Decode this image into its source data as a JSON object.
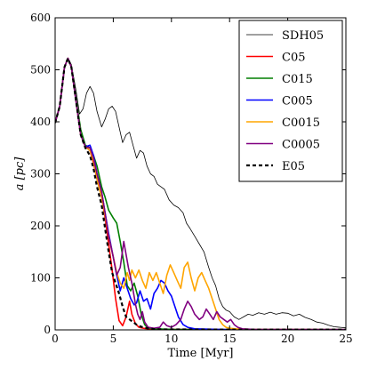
{
  "chart_data": {
    "type": "line",
    "title": "",
    "xlabel": "Time [Myr]",
    "ylabel": "a [pc]",
    "ylabel_parts": {
      "main": "a",
      "unit": "[pc]"
    },
    "xlim": [
      0,
      25
    ],
    "ylim": [
      0,
      600
    ],
    "xticks": [
      0,
      5,
      10,
      15,
      20,
      25
    ],
    "yticks": [
      0,
      100,
      200,
      300,
      400,
      500,
      600
    ],
    "grid": false,
    "legend_position": "top-right",
    "series": [
      {
        "name": "SDH05",
        "color": "#000000",
        "width": 0.8,
        "dash": "",
        "points": [
          [
            0,
            398
          ],
          [
            0.4,
            430
          ],
          [
            0.8,
            505
          ],
          [
            1.1,
            522
          ],
          [
            1.4,
            510
          ],
          [
            1.8,
            460
          ],
          [
            2.1,
            415
          ],
          [
            2.4,
            425
          ],
          [
            2.7,
            455
          ],
          [
            3.0,
            468
          ],
          [
            3.3,
            455
          ],
          [
            3.6,
            420
          ],
          [
            4.0,
            390
          ],
          [
            4.3,
            405
          ],
          [
            4.6,
            425
          ],
          [
            4.9,
            430
          ],
          [
            5.2,
            420
          ],
          [
            5.5,
            390
          ],
          [
            5.8,
            360
          ],
          [
            6.1,
            375
          ],
          [
            6.4,
            380
          ],
          [
            6.7,
            355
          ],
          [
            7.0,
            330
          ],
          [
            7.3,
            345
          ],
          [
            7.6,
            340
          ],
          [
            7.9,
            315
          ],
          [
            8.2,
            300
          ],
          [
            8.5,
            295
          ],
          [
            8.8,
            280
          ],
          [
            9.1,
            275
          ],
          [
            9.4,
            270
          ],
          [
            9.8,
            250
          ],
          [
            10.2,
            240
          ],
          [
            10.6,
            235
          ],
          [
            11.0,
            225
          ],
          [
            11.3,
            205
          ],
          [
            11.6,
            195
          ],
          [
            12.0,
            180
          ],
          [
            12.4,
            165
          ],
          [
            12.8,
            150
          ],
          [
            13.2,
            120
          ],
          [
            13.5,
            100
          ],
          [
            13.8,
            85
          ],
          [
            14.1,
            60
          ],
          [
            14.4,
            45
          ],
          [
            14.7,
            38
          ],
          [
            15.0,
            35
          ],
          [
            15.4,
            25
          ],
          [
            15.8,
            20
          ],
          [
            16.2,
            25
          ],
          [
            16.6,
            30
          ],
          [
            17.0,
            28
          ],
          [
            17.5,
            33
          ],
          [
            18.0,
            30
          ],
          [
            18.5,
            34
          ],
          [
            19.0,
            30
          ],
          [
            19.5,
            33
          ],
          [
            20.0,
            32
          ],
          [
            20.5,
            27
          ],
          [
            21.0,
            30
          ],
          [
            21.5,
            24
          ],
          [
            22.0,
            20
          ],
          [
            22.5,
            15
          ],
          [
            23.0,
            13
          ],
          [
            23.5,
            9
          ],
          [
            24.0,
            6
          ],
          [
            24.5,
            5
          ],
          [
            25.0,
            4
          ]
        ]
      },
      {
        "name": "C05",
        "color": "#ff0000",
        "width": 1.6,
        "dash": "",
        "points": [
          [
            0,
            398
          ],
          [
            0.4,
            430
          ],
          [
            0.8,
            505
          ],
          [
            1.1,
            522
          ],
          [
            1.4,
            505
          ],
          [
            1.8,
            440
          ],
          [
            2.2,
            375
          ],
          [
            2.6,
            352
          ],
          [
            3.0,
            345
          ],
          [
            3.3,
            320
          ],
          [
            3.6,
            290
          ],
          [
            4.0,
            255
          ],
          [
            4.3,
            215
          ],
          [
            4.6,
            165
          ],
          [
            4.9,
            115
          ],
          [
            5.2,
            60
          ],
          [
            5.5,
            18
          ],
          [
            5.8,
            8
          ],
          [
            6.1,
            25
          ],
          [
            6.4,
            55
          ],
          [
            6.6,
            30
          ],
          [
            6.9,
            12
          ],
          [
            7.2,
            5
          ],
          [
            7.6,
            3
          ],
          [
            8.0,
            2
          ],
          [
            9.0,
            1
          ],
          [
            10,
            1
          ],
          [
            15,
            0.5
          ],
          [
            25,
            0.5
          ]
        ]
      },
      {
        "name": "C015",
        "color": "#007f00",
        "width": 1.6,
        "dash": "",
        "points": [
          [
            0,
            398
          ],
          [
            0.4,
            430
          ],
          [
            0.8,
            505
          ],
          [
            1.1,
            522
          ],
          [
            1.4,
            505
          ],
          [
            1.8,
            445
          ],
          [
            2.2,
            385
          ],
          [
            2.6,
            355
          ],
          [
            3.0,
            350
          ],
          [
            3.3,
            335
          ],
          [
            3.6,
            315
          ],
          [
            4.0,
            275
          ],
          [
            4.3,
            255
          ],
          [
            4.6,
            230
          ],
          [
            5.0,
            215
          ],
          [
            5.3,
            205
          ],
          [
            5.6,
            170
          ],
          [
            5.9,
            130
          ],
          [
            6.2,
            85
          ],
          [
            6.5,
            75
          ],
          [
            6.8,
            90
          ],
          [
            7.1,
            65
          ],
          [
            7.4,
            30
          ],
          [
            7.7,
            10
          ],
          [
            8.0,
            4
          ],
          [
            8.5,
            2
          ],
          [
            10,
            1
          ],
          [
            15,
            0.5
          ],
          [
            25,
            0.5
          ]
        ]
      },
      {
        "name": "C005",
        "color": "#0000ff",
        "width": 1.6,
        "dash": "",
        "points": [
          [
            0,
            398
          ],
          [
            0.4,
            430
          ],
          [
            0.8,
            505
          ],
          [
            1.1,
            522
          ],
          [
            1.4,
            505
          ],
          [
            1.8,
            440
          ],
          [
            2.2,
            375
          ],
          [
            2.6,
            352
          ],
          [
            3.0,
            355
          ],
          [
            3.3,
            335
          ],
          [
            3.6,
            300
          ],
          [
            4.0,
            265
          ],
          [
            4.3,
            225
          ],
          [
            4.6,
            185
          ],
          [
            5.0,
            140
          ],
          [
            5.3,
            105
          ],
          [
            5.6,
            75
          ],
          [
            5.9,
            100
          ],
          [
            6.2,
            80
          ],
          [
            6.5,
            60
          ],
          [
            6.8,
            48
          ],
          [
            7.0,
            52
          ],
          [
            7.3,
            75
          ],
          [
            7.6,
            55
          ],
          [
            7.9,
            60
          ],
          [
            8.2,
            40
          ],
          [
            8.5,
            70
          ],
          [
            8.8,
            80
          ],
          [
            9.1,
            95
          ],
          [
            9.4,
            90
          ],
          [
            9.7,
            75
          ],
          [
            10.0,
            65
          ],
          [
            10.3,
            45
          ],
          [
            10.6,
            25
          ],
          [
            11.0,
            10
          ],
          [
            11.4,
            5
          ],
          [
            12,
            2
          ],
          [
            15,
            0.5
          ],
          [
            25,
            0.5
          ]
        ]
      },
      {
        "name": "C0015",
        "color": "#ffa500",
        "width": 1.6,
        "dash": "",
        "points": [
          [
            0,
            398
          ],
          [
            0.4,
            430
          ],
          [
            0.8,
            505
          ],
          [
            1.1,
            522
          ],
          [
            1.4,
            505
          ],
          [
            1.8,
            440
          ],
          [
            2.2,
            375
          ],
          [
            2.6,
            352
          ],
          [
            3.0,
            345
          ],
          [
            3.3,
            325
          ],
          [
            3.6,
            290
          ],
          [
            4.0,
            255
          ],
          [
            4.3,
            220
          ],
          [
            4.6,
            180
          ],
          [
            5.0,
            140
          ],
          [
            5.3,
            110
          ],
          [
            5.6,
            90
          ],
          [
            5.9,
            80
          ],
          [
            6.2,
            110
          ],
          [
            6.4,
            95
          ],
          [
            6.6,
            115
          ],
          [
            6.9,
            100
          ],
          [
            7.2,
            115
          ],
          [
            7.5,
            95
          ],
          [
            7.8,
            80
          ],
          [
            8.1,
            110
          ],
          [
            8.4,
            95
          ],
          [
            8.7,
            110
          ],
          [
            9.0,
            90
          ],
          [
            9.3,
            70
          ],
          [
            9.6,
            105
          ],
          [
            9.9,
            125
          ],
          [
            10.2,
            110
          ],
          [
            10.5,
            95
          ],
          [
            10.8,
            80
          ],
          [
            11.1,
            120
          ],
          [
            11.4,
            130
          ],
          [
            11.7,
            100
          ],
          [
            12.0,
            75
          ],
          [
            12.3,
            100
          ],
          [
            12.6,
            110
          ],
          [
            12.9,
            95
          ],
          [
            13.2,
            80
          ],
          [
            13.5,
            60
          ],
          [
            13.8,
            40
          ],
          [
            14.1,
            20
          ],
          [
            14.4,
            10
          ],
          [
            14.7,
            5
          ],
          [
            15.0,
            3
          ],
          [
            15.5,
            2
          ],
          [
            17,
            1
          ],
          [
            25,
            0.5
          ]
        ]
      },
      {
        "name": "C0005",
        "color": "#800080",
        "width": 1.6,
        "dash": "",
        "points": [
          [
            0,
            398
          ],
          [
            0.4,
            430
          ],
          [
            0.8,
            505
          ],
          [
            1.1,
            522
          ],
          [
            1.4,
            505
          ],
          [
            1.8,
            440
          ],
          [
            2.2,
            375
          ],
          [
            2.6,
            352
          ],
          [
            3.0,
            350
          ],
          [
            3.3,
            330
          ],
          [
            3.6,
            300
          ],
          [
            4.0,
            265
          ],
          [
            4.3,
            225
          ],
          [
            4.6,
            180
          ],
          [
            5.0,
            140
          ],
          [
            5.3,
            105
          ],
          [
            5.6,
            120
          ],
          [
            5.9,
            170
          ],
          [
            6.1,
            145
          ],
          [
            6.3,
            120
          ],
          [
            6.6,
            90
          ],
          [
            6.9,
            50
          ],
          [
            7.1,
            30
          ],
          [
            7.3,
            20
          ],
          [
            7.5,
            35
          ],
          [
            7.7,
            15
          ],
          [
            8.0,
            5
          ],
          [
            8.5,
            3
          ],
          [
            9.0,
            5
          ],
          [
            9.3,
            15
          ],
          [
            9.6,
            8
          ],
          [
            10.0,
            5
          ],
          [
            10.4,
            10
          ],
          [
            10.8,
            20
          ],
          [
            11.1,
            40
          ],
          [
            11.4,
            55
          ],
          [
            11.7,
            45
          ],
          [
            12.0,
            30
          ],
          [
            12.4,
            20
          ],
          [
            12.7,
            25
          ],
          [
            13.0,
            40
          ],
          [
            13.3,
            30
          ],
          [
            13.6,
            20
          ],
          [
            13.9,
            35
          ],
          [
            14.2,
            25
          ],
          [
            14.5,
            20
          ],
          [
            14.8,
            15
          ],
          [
            15.1,
            20
          ],
          [
            15.4,
            10
          ],
          [
            15.7,
            5
          ],
          [
            16.1,
            2
          ],
          [
            17,
            1
          ],
          [
            25,
            0.5
          ]
        ]
      },
      {
        "name": "E05",
        "color": "#000000",
        "width": 2.2,
        "dash": "4,3",
        "points": [
          [
            0,
            398
          ],
          [
            0.4,
            430
          ],
          [
            0.8,
            505
          ],
          [
            1.1,
            522
          ],
          [
            1.4,
            505
          ],
          [
            1.8,
            440
          ],
          [
            2.2,
            375
          ],
          [
            2.6,
            350
          ],
          [
            3.0,
            335
          ],
          [
            3.3,
            310
          ],
          [
            3.6,
            275
          ],
          [
            4.0,
            240
          ],
          [
            4.3,
            195
          ],
          [
            4.6,
            150
          ],
          [
            4.9,
            110
          ],
          [
            5.2,
            90
          ],
          [
            5.5,
            70
          ],
          [
            5.8,
            45
          ],
          [
            6.1,
            25
          ],
          [
            6.4,
            20
          ],
          [
            6.7,
            15
          ],
          [
            7.0,
            10
          ],
          [
            7.4,
            6
          ],
          [
            7.8,
            4
          ],
          [
            8.2,
            2
          ],
          [
            9,
            1
          ],
          [
            15,
            0.5
          ],
          [
            25,
            0.5
          ]
        ]
      }
    ]
  }
}
